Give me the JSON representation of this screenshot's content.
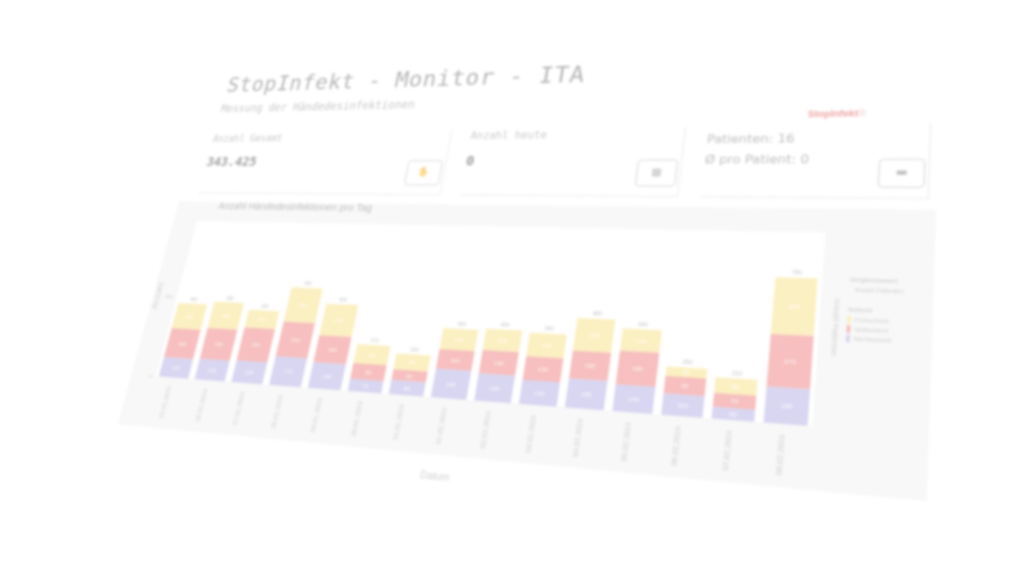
{
  "header": {
    "title": "StopInfekt - Monitor - ITA",
    "subtitle": "Messung der Händedesinfektionen"
  },
  "cards": {
    "total": {
      "label": "Anzahl Gesamt",
      "value": "343.425"
    },
    "today": {
      "label": "Anzahl heute",
      "value": "0"
    },
    "patients": {
      "label": "Patienten: 16",
      "value": "Ø pro Patient: 0"
    }
  },
  "brand": {
    "name": "StopInfekt",
    "mark": "®"
  },
  "icons": {
    "total": "hand-icon",
    "today": "calendar-icon",
    "patients": "bed-icon"
  },
  "chart_data": {
    "type": "bar",
    "stacked": true,
    "title": "Anzahl Händedesinfektionen pro Tag",
    "xlabel": "Datum",
    "ylabel": "Anzahl",
    "y2label": "Anzahl Patienten",
    "ylim": [
      0,
      1000
    ],
    "y_ticks": [
      "0",
      "500"
    ],
    "categories": [
      "25.01.2024",
      "26.01.2024",
      "27.01.2024",
      "28.01.2024",
      "29.01.2024",
      "30.01.2024",
      "31.01.2024",
      "01.02.2024",
      "02.02.2024",
      "03.02.2024",
      "04.02.2024",
      "05.02.2024",
      "06.02.2024",
      "07.02.2024",
      "08.02.2024"
    ],
    "series": [
      {
        "name": "Nachtschicht",
        "color": "#b8b4e6",
        "values": [
          120,
          125,
          130,
          170,
          150,
          70,
          80,
          160,
          150,
          130,
          155,
          140,
          110,
          60,
          180
        ]
      },
      {
        "name": "Spätschicht",
        "color": "#f08a8a",
        "values": [
          180,
          190,
          200,
          210,
          160,
          90,
          60,
          110,
          130,
          130,
          150,
          180,
          90,
          70,
          270
        ]
      },
      {
        "name": "Frühschicht",
        "color": "#f8e38e",
        "values": [
          160,
          165,
          110,
          210,
          190,
          110,
          90,
          120,
          120,
          130,
          180,
          120,
          50,
          80,
          300
        ]
      }
    ],
    "totals": [
      460,
      480,
      440,
      590,
      500,
      270,
      230,
      390,
      400,
      390,
      485,
      440,
      250,
      210,
      750
    ],
    "legend": {
      "title1": "Vergleichswert",
      "item1": "Anzahl Patienten",
      "title2": "Schicht",
      "position": "right"
    }
  }
}
